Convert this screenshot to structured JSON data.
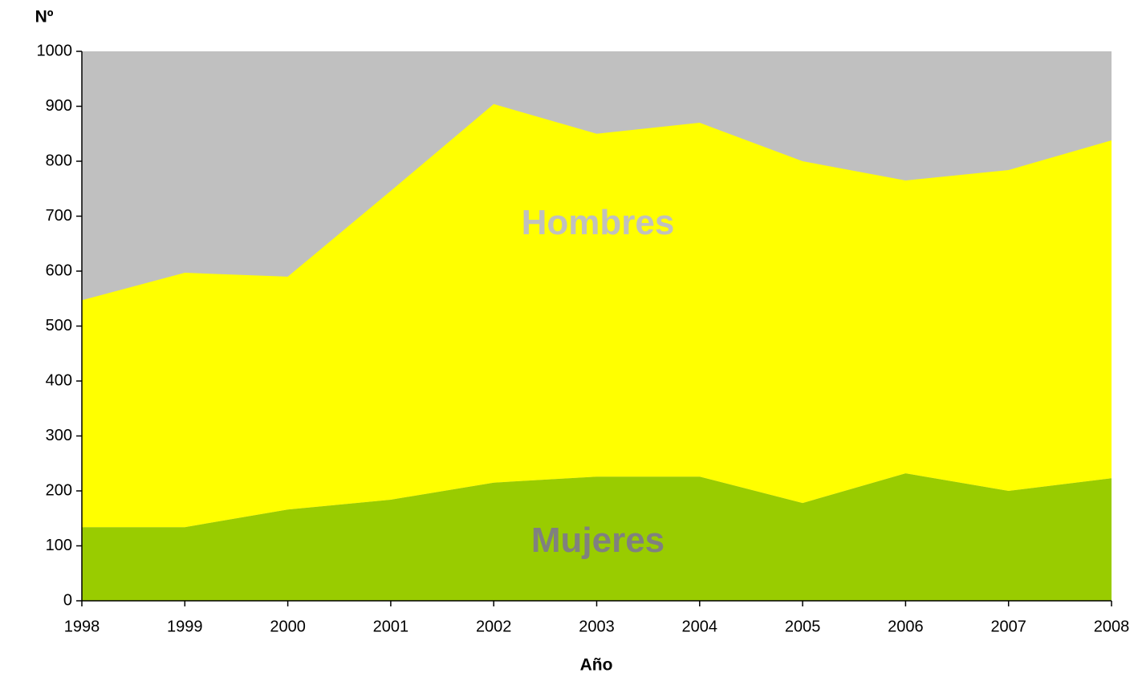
{
  "chart_data": {
    "type": "stacked_area",
    "y_label": "Nº",
    "x_label": "Año",
    "x": [
      1998,
      1999,
      2000,
      2001,
      2002,
      2003,
      2004,
      2005,
      2006,
      2007,
      2008
    ],
    "series": [
      {
        "name": "Mujeres",
        "color": "#99cc00",
        "values": [
          134,
          134,
          166,
          184,
          215,
          226,
          226,
          178,
          232,
          200,
          223
        ]
      },
      {
        "name": "Hombres",
        "color": "#ffff00",
        "values": [
          413,
          463,
          424,
          562,
          689,
          624,
          644,
          622,
          533,
          584,
          615
        ]
      }
    ],
    "xlim": [
      1998,
      2008
    ],
    "xticks": [
      1998,
      1999,
      2000,
      2001,
      2002,
      2003,
      2004,
      2005,
      2006,
      2007,
      2008
    ],
    "ylim": [
      0,
      1000
    ],
    "yticks": [
      0,
      100,
      200,
      300,
      400,
      500,
      600,
      700,
      800,
      900,
      1000
    ],
    "plot_background": "#c0c0c0"
  }
}
